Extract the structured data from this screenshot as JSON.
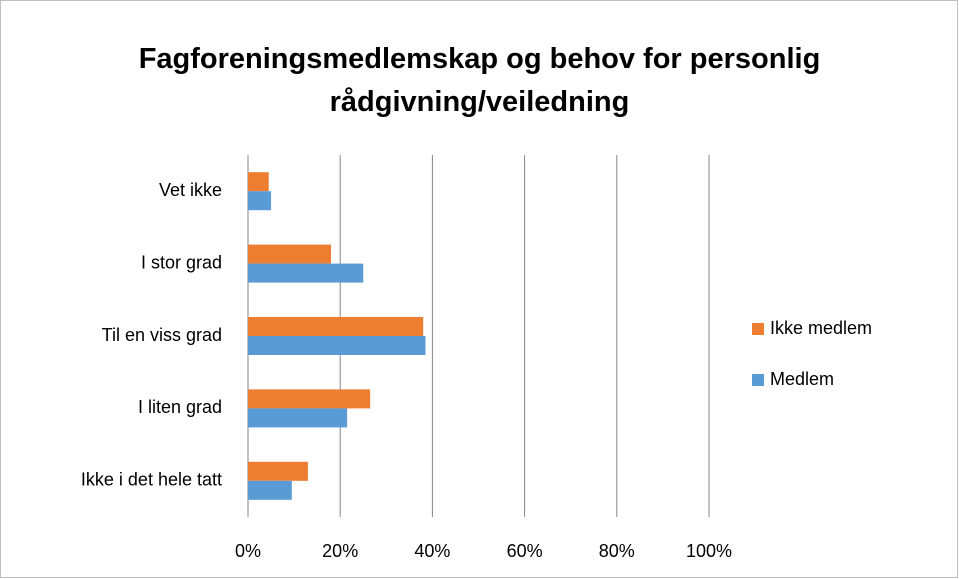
{
  "chart_data": {
    "type": "bar",
    "orientation": "horizontal",
    "title": "Fagforeningsmedlemskap og behov for personlig rådgivning/veiledning",
    "categories": [
      "Vet ikke",
      "I stor grad",
      "Til en viss grad",
      "I liten grad",
      "Ikke i det hele tatt"
    ],
    "series": [
      {
        "name": "Ikke medlem",
        "color": "#ed7d31",
        "values": [
          4.5,
          18,
          38,
          26.5,
          13
        ]
      },
      {
        "name": "Medlem",
        "color": "#5b9bd5",
        "values": [
          5,
          25,
          38.5,
          21.5,
          9.5
        ]
      }
    ],
    "xlim": [
      0,
      100
    ],
    "xticks": [
      {
        "value": 0,
        "label": "0%"
      },
      {
        "value": 20,
        "label": "20%"
      },
      {
        "value": 40,
        "label": "40%"
      },
      {
        "value": 60,
        "label": "60%"
      },
      {
        "value": 80,
        "label": "80%"
      },
      {
        "value": 100,
        "label": "100%"
      }
    ],
    "grid": true,
    "legend": "right"
  }
}
